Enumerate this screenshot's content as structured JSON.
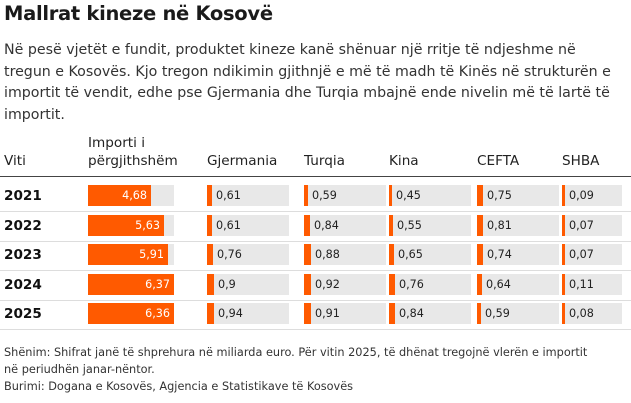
{
  "title": "Mallrat kineze në Kosovë",
  "subtitle": "Në pesë vjetët e fundit, produktet kineze kanë shënuar një rritje të ndjeshme në tregun e Kosovës. Kjo tregon ndikimin gjithnjë e më të madh të Kinës në strukturën e importit të vendit, edhe pse Gjermania dhe Turqia mbajnë ende nivelin më të lartë të importit.",
  "note": "Shënim: Shifrat janë të shprehura në miliarda euro. Për vitin 2025, të dhënat tregojnë vlerën e importit në periudhën janar-nëntor.",
  "source": "Burimi: Dogana e Kosovës, Agjencia e Statistikave të Kosovës",
  "colors": {
    "bar": "#ff5a00",
    "track": "#e8e8e8"
  },
  "chart_data": {
    "type": "table",
    "row_header": "Viti",
    "columns": [
      {
        "key": "total",
        "label_lines": [
          "Importi i",
          "përgjithshëm"
        ],
        "max": 6.37
      },
      {
        "key": "germany",
        "label_lines": [
          "Gjermania"
        ],
        "max": 11
      },
      {
        "key": "turkey",
        "label_lines": [
          "Turqia"
        ],
        "max": 11
      },
      {
        "key": "china",
        "label_lines": [
          "Kina"
        ],
        "max": 11
      },
      {
        "key": "cefta",
        "label_lines": [
          "CEFTA"
        ],
        "max": 11
      },
      {
        "key": "usa",
        "label_lines": [
          "SHBA"
        ],
        "max": 11
      }
    ],
    "rows": [
      {
        "year": "2021",
        "values": [
          4.68,
          0.61,
          0.59,
          0.45,
          0.75,
          0.09
        ],
        "labels": [
          "4,68",
          "0,61",
          "0,59",
          "0,45",
          "0,75",
          "0,09"
        ]
      },
      {
        "year": "2022",
        "values": [
          5.63,
          0.61,
          0.84,
          0.55,
          0.81,
          0.07
        ],
        "labels": [
          "5,63",
          "0,61",
          "0,84",
          "0,55",
          "0,81",
          "0,07"
        ]
      },
      {
        "year": "2023",
        "values": [
          5.91,
          0.76,
          0.88,
          0.65,
          0.74,
          0.07
        ],
        "labels": [
          "5,91",
          "0,76",
          "0,88",
          "0,65",
          "0,74",
          "0,07"
        ]
      },
      {
        "year": "2024",
        "values": [
          6.37,
          0.9,
          0.92,
          0.76,
          0.64,
          0.11
        ],
        "labels": [
          "6,37",
          "0,9",
          "0,92",
          "0,76",
          "0,64",
          "0,11"
        ]
      },
      {
        "year": "2025",
        "values": [
          6.36,
          0.94,
          0.91,
          0.84,
          0.59,
          0.08
        ],
        "labels": [
          "6,36",
          "0,94",
          "0,91",
          "0,84",
          "0,59",
          "0,08"
        ]
      }
    ]
  }
}
